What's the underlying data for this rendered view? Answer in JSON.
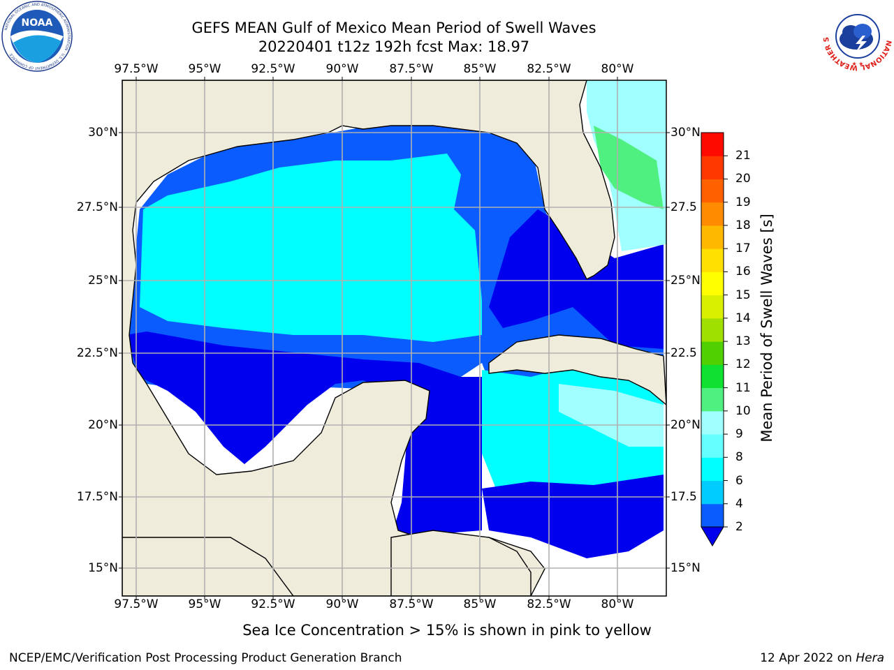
{
  "header": {
    "title_line1": "GEFS MEAN Gulf of Mexico Mean Period of Swell Waves",
    "title_line2": "20220401 t12z 192h fcst   Max: 18.97"
  },
  "logos": {
    "left": {
      "text": "NOAA",
      "ring_text": "NATIONAL OCEANIC AND ATMOSPHERIC ADMINISTRATION · U.S. DEPARTMENT OF COMMERCE"
    },
    "right": {
      "ring_text": "NATIONAL WEATHER SERVICE"
    }
  },
  "map": {
    "lon_ticks": [
      "97.5°W",
      "95°W",
      "92.5°W",
      "90°W",
      "87.5°W",
      "85°W",
      "82.5°W",
      "80°W"
    ],
    "lat_ticks_left": [
      "30°N",
      "27.5°N",
      "25°N",
      "22.5°N",
      "20°N",
      "17.5°N",
      "15°N"
    ],
    "lat_ticks_right": [
      "30°N",
      "27.5",
      "25°N",
      "22.5",
      "20°N",
      "17.5",
      "15°N"
    ],
    "land_color": "#efecdc",
    "grid_color": "#b0b0b0"
  },
  "colorbar": {
    "label": "Mean Period of Swell Waves [s]",
    "ticks": [
      "2",
      "4",
      "6",
      "8",
      "9",
      "10",
      "11",
      "12",
      "13",
      "14",
      "15",
      "16",
      "17",
      "18",
      "19",
      "20",
      "21"
    ],
    "colors": [
      "#0a5cff",
      "#00ccff",
      "#00ffff",
      "#66ffff",
      "#a0ffff",
      "#50f080",
      "#10e030",
      "#50d000",
      "#a0e000",
      "#d8f000",
      "#ffff00",
      "#ffe000",
      "#ffb800",
      "#ff8c00",
      "#ff6000",
      "#ff3800",
      "#ff0a00"
    ],
    "extend_color": "#0000ee"
  },
  "footer": {
    "subtitle": "Sea Ice Concentration > 15% is shown in pink to yellow",
    "org": "NCEP/EMC/Verification Post Processing Product Generation Branch",
    "date": "12 Apr 2022 on ",
    "host": "Hera"
  }
}
